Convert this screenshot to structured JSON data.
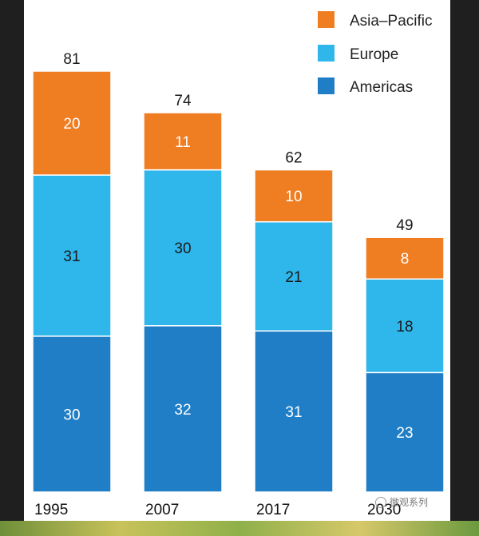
{
  "chart_data": {
    "type": "bar",
    "stacked": true,
    "categories": [
      "1995",
      "2007",
      "2017",
      "2030"
    ],
    "series": [
      {
        "name": "Americas",
        "values": [
          30,
          32,
          31,
          23
        ],
        "color": "#1f7ec5"
      },
      {
        "name": "Europe",
        "values": [
          31,
          30,
          21,
          18
        ],
        "color": "#2fb6ea"
      },
      {
        "name": "Asia–Pacific",
        "values": [
          20,
          11,
          10,
          8
        ],
        "color": "#ef7d22"
      }
    ],
    "totals": [
      81,
      74,
      62,
      49
    ],
    "legend": [
      "Asia–Pacific",
      "Europe",
      "Americas"
    ],
    "legend_position": "top-right",
    "ylim": [
      0,
      81
    ]
  },
  "watermark": "微观系列"
}
